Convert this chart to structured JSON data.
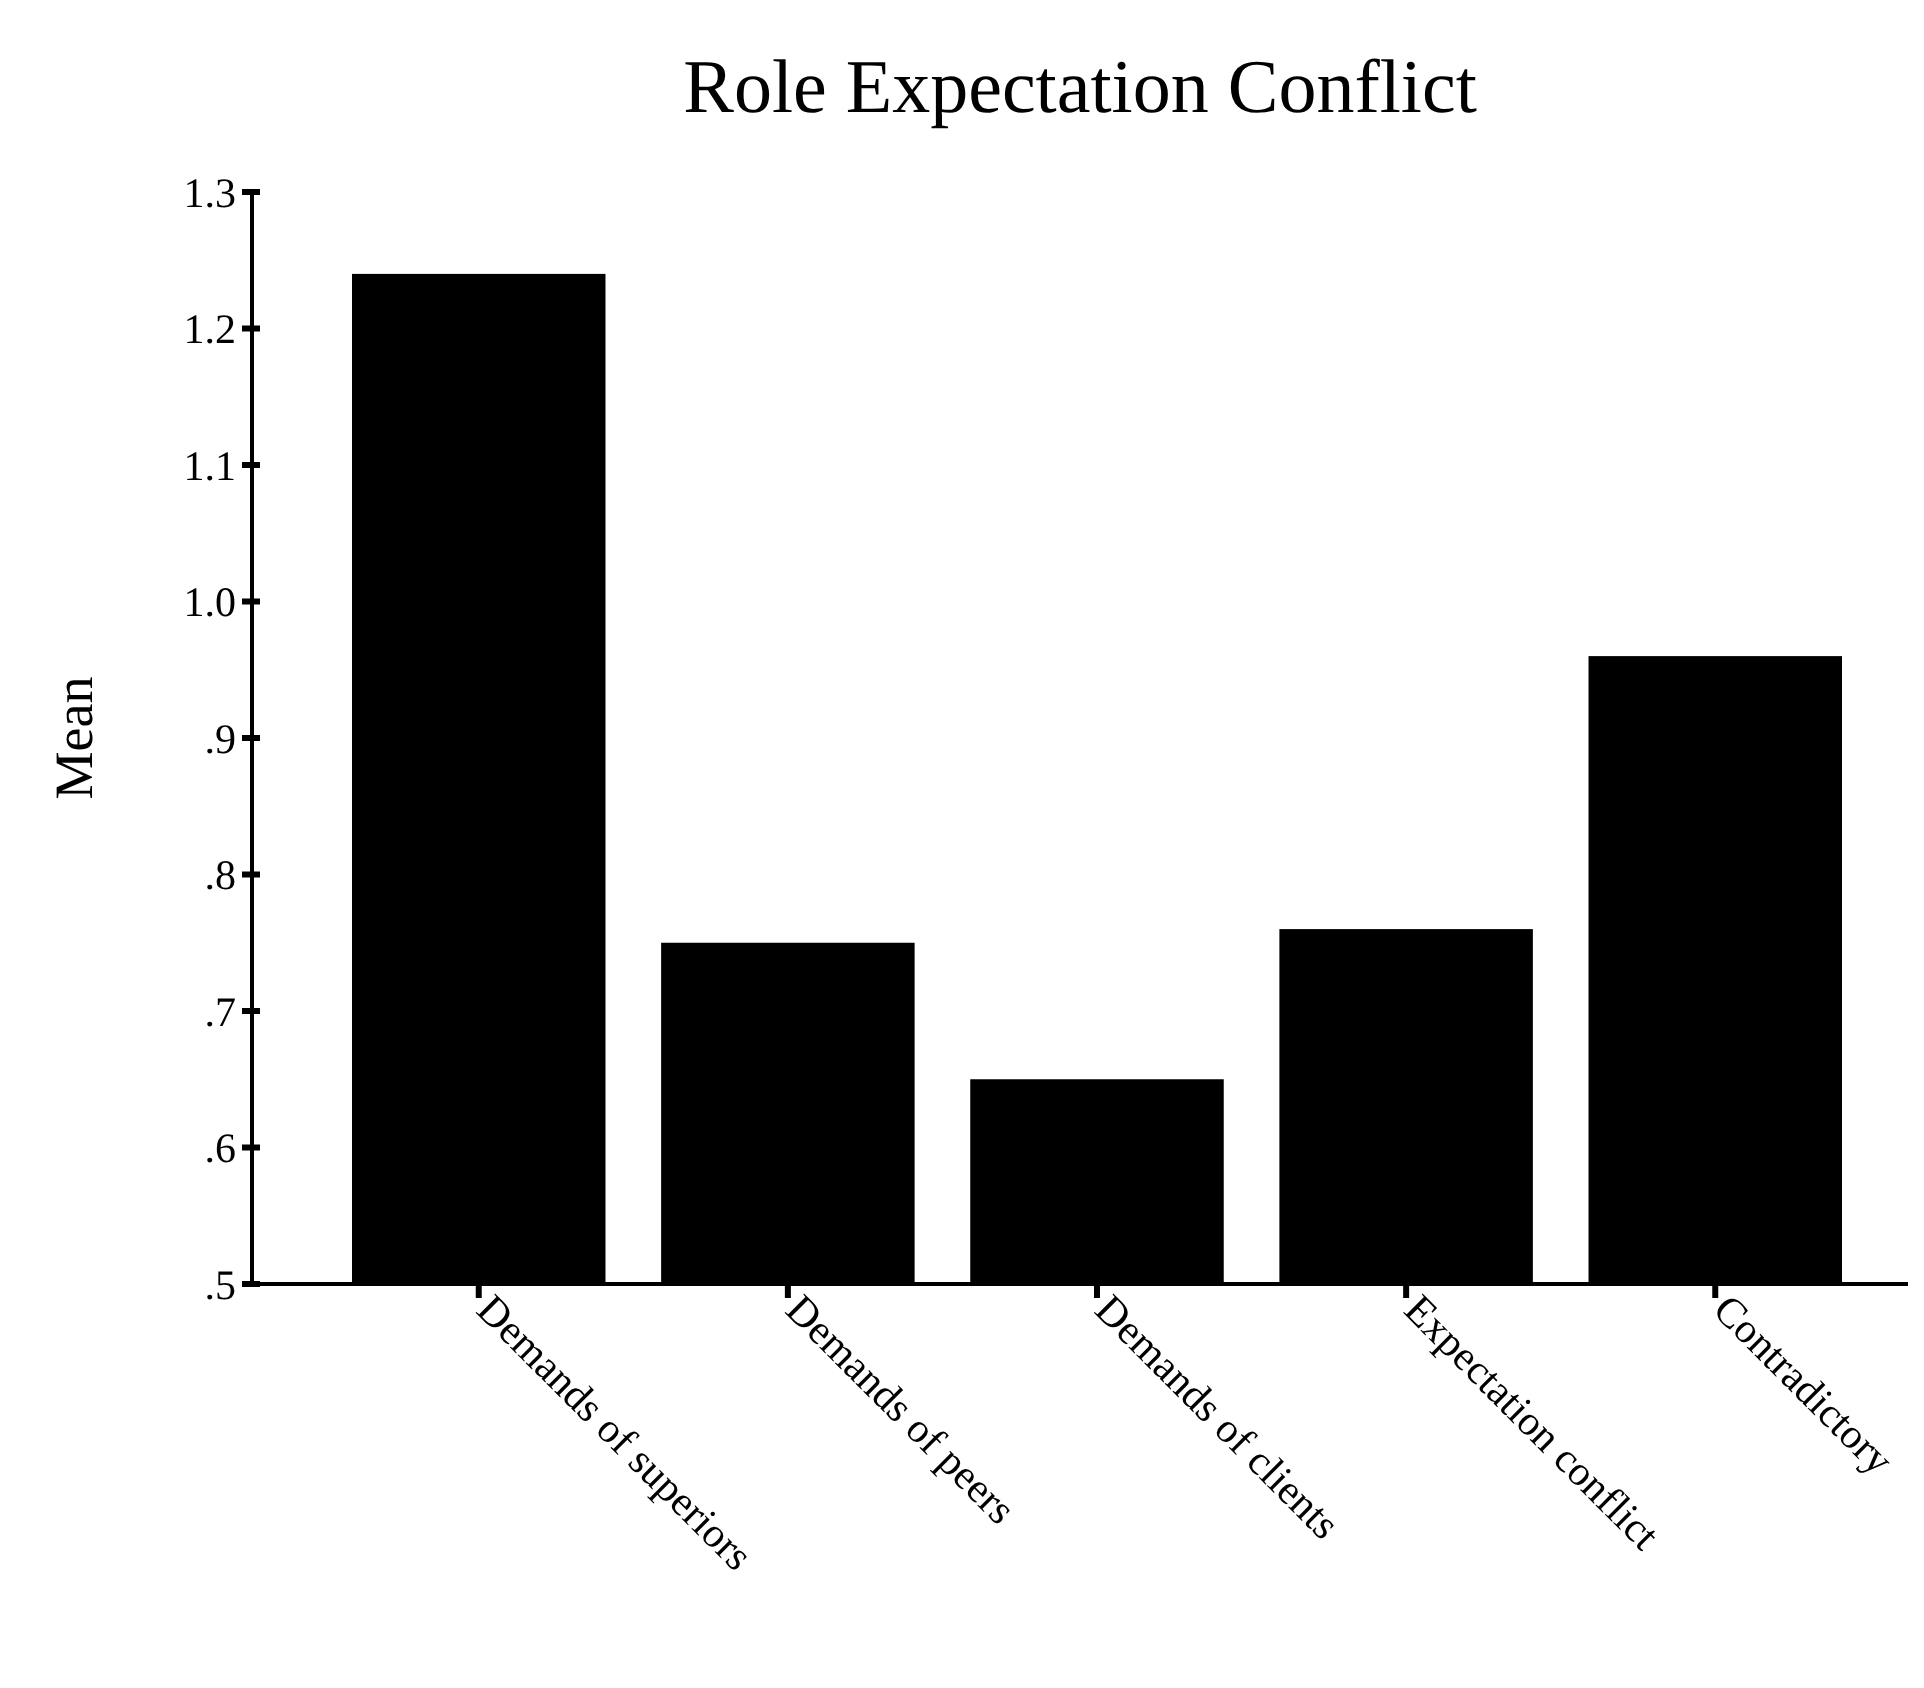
{
  "chart_data": {
    "type": "bar",
    "title": "Role Expectation Conflict",
    "ylabel": "Mean",
    "categories": [
      "Demands of superiors",
      "Demands of peers",
      "Demands of clients",
      "Expectation conflict",
      "Contradictory"
    ],
    "values": [
      1.24,
      0.75,
      0.65,
      0.76,
      0.96
    ],
    "color": "#000000",
    "ylim": [
      0.5,
      1.3
    ],
    "yticks": [
      {
        "value": 0.5,
        "label": ".5"
      },
      {
        "value": 0.6,
        "label": ".6"
      },
      {
        "value": 0.7,
        "label": ".7"
      },
      {
        "value": 0.8,
        "label": ".8"
      },
      {
        "value": 0.9,
        "label": ".9"
      },
      {
        "value": 1,
        "label": "1.0"
      },
      1.1,
      1.2,
      1.3
    ],
    "grid": false
  }
}
